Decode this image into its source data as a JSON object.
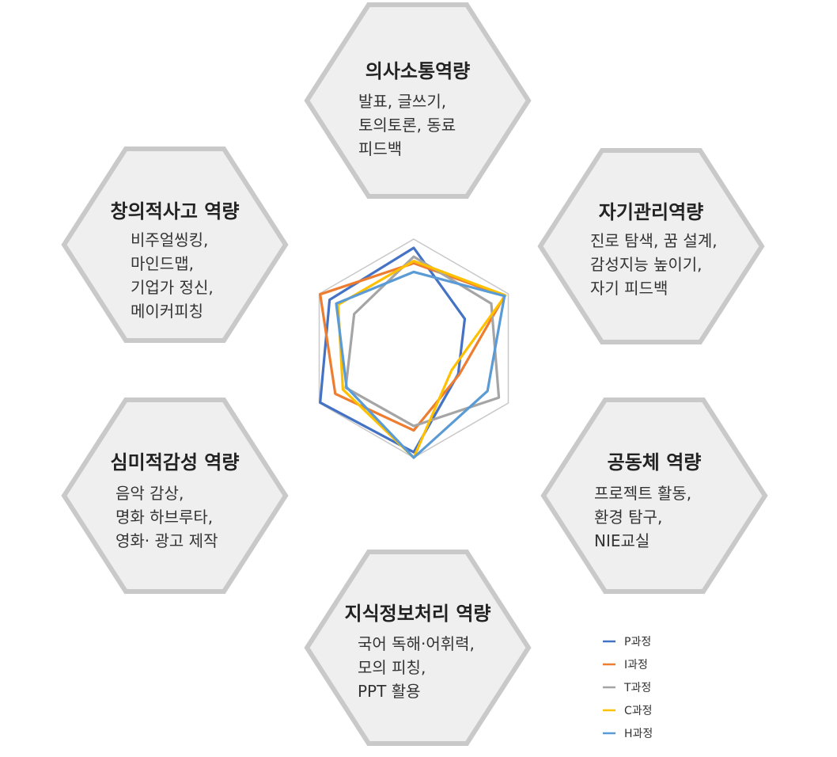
{
  "hexagons": [
    {
      "id": "communication",
      "title": "의사소통역량",
      "lines": [
        "발표, 글쓰기,",
        "토의토론, 동료",
        "피드백"
      ]
    },
    {
      "id": "self-management",
      "title": "자기관리역량",
      "lines": [
        "진로 탐색, 꿈 설계,",
        "감성지능 높이기,",
        "자기 피드백"
      ]
    },
    {
      "id": "community",
      "title": "공동체 역량",
      "lines": [
        "프로젝트 활동,",
        "환경 탐구,",
        "NIE교실"
      ]
    },
    {
      "id": "information",
      "title": "지식정보처리 역량",
      "lines": [
        "국어 독해·어휘력,",
        "모의 피칭,",
        "PPT 활용"
      ]
    },
    {
      "id": "aesthetic",
      "title": "심미적감성 역량",
      "lines": [
        "음악 감상,",
        "명화 하브루타,",
        "영화· 광고 제작"
      ]
    },
    {
      "id": "creative",
      "title": "창의적사고 역량",
      "lines": [
        "비주얼씽킹,",
        "마인드맵,",
        "기업가 정신,",
        "메이커피칭"
      ]
    }
  ],
  "chart_data": {
    "type": "radar",
    "axes": [
      "의사소통역량",
      "자기관리역량",
      "공동체 역량",
      "지식정보처리 역량",
      "심미적감성 역량",
      "창의적사고 역량"
    ],
    "range": [
      0,
      1
    ],
    "series": [
      {
        "name": "P과정",
        "color": "#4472C4",
        "values": [
          0.92,
          0.54,
          0.47,
          0.95,
          0.99,
          0.89
        ]
      },
      {
        "name": "I과정",
        "color": "#ED7D31",
        "values": [
          0.78,
          0.96,
          0.48,
          0.75,
          0.83,
          0.99
        ]
      },
      {
        "name": "T과정",
        "color": "#A5A5A5",
        "values": [
          0.84,
          0.82,
          0.9,
          0.71,
          0.72,
          0.63
        ]
      },
      {
        "name": "C과정",
        "color": "#FFC000",
        "values": [
          0.8,
          0.97,
          0.4,
          1.0,
          0.75,
          0.8
        ]
      },
      {
        "name": "H과정",
        "color": "#5B9BD5",
        "values": [
          0.7,
          0.96,
          0.78,
          1.0,
          0.71,
          0.82
        ]
      }
    ]
  }
}
